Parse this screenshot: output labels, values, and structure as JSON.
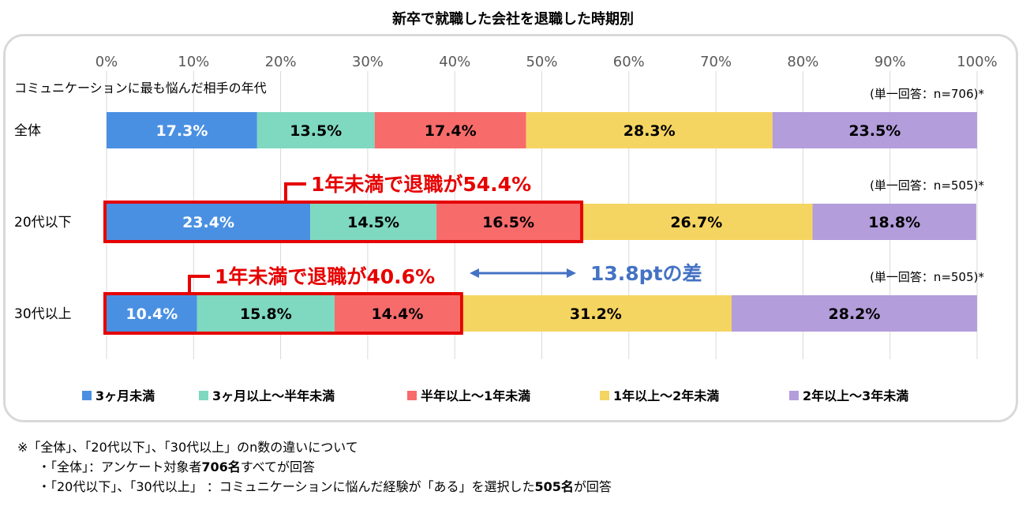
{
  "chart_data": {
    "type": "bar",
    "stacked": true,
    "orientation": "horizontal",
    "title": "新卒で就職した会社を退職した時期別",
    "subtitle": "コミュニケーションに最も悩んだ相手の年代",
    "xlim": [
      0,
      100
    ],
    "x_ticks": [
      "0%",
      "10%",
      "20%",
      "30%",
      "40%",
      "50%",
      "60%",
      "70%",
      "80%",
      "90%",
      "100%"
    ],
    "grid": true,
    "legend_position": "bottom",
    "categories": [
      "全体",
      "20代以下",
      "30代以上"
    ],
    "sample_labels": [
      "(単一回答：n=706)*",
      "(単一回答：n=505)*",
      "(単一回答：n=505)*"
    ],
    "series": [
      {
        "name": "3ヶ月未満",
        "values": [
          17.3,
          23.4,
          10.4
        ],
        "labels": [
          "17.3%",
          "23.4%",
          "10.4%"
        ],
        "color": "#4a90e2",
        "label_color": "#ffffff"
      },
      {
        "name": "3ヶ月以上～半年未満",
        "values": [
          13.5,
          14.5,
          15.8
        ],
        "labels": [
          "13.5%",
          "14.5%",
          "15.8%"
        ],
        "color": "#7fd8c0",
        "label_color": "#000000"
      },
      {
        "name": "半年以上～1年未満",
        "values": [
          17.4,
          16.5,
          14.4
        ],
        "labels": [
          "17.4%",
          "16.5%",
          "14.4%"
        ],
        "color": "#f76b6b",
        "label_color": "#000000"
      },
      {
        "name": "1年以上～2年未満",
        "values": [
          28.3,
          26.7,
          31.2
        ],
        "labels": [
          "28.3%",
          "26.7%",
          "31.2%"
        ],
        "color": "#f5d561",
        "label_color": "#000000"
      },
      {
        "name": "2年以上～3年未満",
        "values": [
          23.5,
          18.8,
          28.2
        ],
        "labels": [
          "23.5%",
          "18.8%",
          "28.2%"
        ],
        "color": "#b39ddb",
        "label_color": "#000000"
      }
    ],
    "annotations": [
      {
        "category_index": 1,
        "text": "1年未満で退職が54.4%",
        "value": 54.4,
        "color": "#e60000"
      },
      {
        "category_index": 2,
        "text": "1年未満で退職が40.6%",
        "value": 40.6,
        "color": "#e60000"
      }
    ],
    "difference": {
      "text": "13.8ptの差",
      "color": "#4472c4"
    }
  },
  "notes": {
    "line1": "※「全体」、「20代以下」、「30代以上」のn数の違いについて",
    "line2_pre": "・「全体」：アンケート対象者",
    "line2_bold": "706名",
    "line2_post": "すべてが回答",
    "line3_pre": "・「20代以下」、「30代以上」 ：コミュニケーションに悩んだ経験が「ある」を選択した",
    "line3_bold": "505名",
    "line3_post": "が回答"
  }
}
